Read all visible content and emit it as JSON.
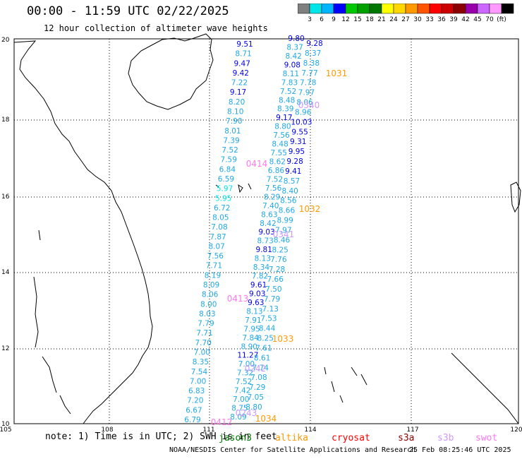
{
  "header": {
    "title": "00:00 - 11:59 UTC 02/22/2025",
    "subtitle": "12 hour collection of altimeter wave heights"
  },
  "legend": {
    "labels": [
      "3",
      "6",
      "9",
      "12",
      "15",
      "18",
      "21",
      "24",
      "27",
      "30",
      "33",
      "36",
      "39",
      "42",
      "45",
      "70",
      "(ft)"
    ],
    "colors": [
      "#7f7f7f",
      "#00e6e6",
      "#00b4ff",
      "#0000ff",
      "#00c800",
      "#00a000",
      "#007800",
      "#ffff00",
      "#ffd700",
      "#ff9900",
      "#ff5500",
      "#ff0000",
      "#cc0000",
      "#8b0000",
      "#9900aa",
      "#cc66ff",
      "#ff99ff",
      "#000000"
    ]
  },
  "axes": {
    "x_ticks": [
      "105",
      "108",
      "111",
      "114",
      "117",
      "120"
    ],
    "y_ticks": [
      "20",
      "18",
      "16",
      "14",
      "12",
      "10"
    ]
  },
  "pass_labels": [
    {
      "text": "1031",
      "color": "#ff9900"
    },
    {
      "text": "0340",
      "color": "#cc99ff"
    },
    {
      "text": "0414",
      "color": "#ff77ee"
    },
    {
      "text": "1032",
      "color": "#ff9900"
    },
    {
      "text": "0341",
      "color": "#cc99ff"
    },
    {
      "text": "0413",
      "color": "#ff77ee"
    },
    {
      "text": "1033",
      "color": "#ff9900"
    },
    {
      "text": "0242",
      "color": "#cc99ff"
    },
    {
      "text": "0243",
      "color": "#cc99ff"
    },
    {
      "text": "0412",
      "color": "#ff77ee"
    },
    {
      "text": "1034",
      "color": "#ff9900"
    }
  ],
  "tracks": [
    {
      "name": "track-a",
      "values": [
        "9.51",
        "8.71",
        "9.47",
        "9.42",
        "7.22",
        "9.17",
        "8.20",
        "8.10",
        "7.90",
        "8.01",
        "7.39",
        "7.52",
        "7.59",
        "6.84",
        "6.59",
        "5.97",
        "5.95",
        "6.72",
        "8.05",
        "7.08",
        "7.87",
        "8.07",
        "7.56",
        "7.71",
        "8.19",
        "8.09",
        "8.06",
        "8.00",
        "8.03",
        "7.79",
        "7.71",
        "7.70",
        "7.00",
        "8.35",
        "7.54",
        "7.00",
        "6.83",
        "7.20",
        "6.67",
        "6.79"
      ]
    },
    {
      "name": "track-b",
      "values": [
        "9.80",
        "8.37",
        "8.42",
        "9.08",
        "8.11",
        "7.83",
        "7.52",
        "8.48",
        "8.39",
        "9.17",
        "8.80",
        "7.56",
        "8.48",
        "7.55",
        "8.62",
        "6.86",
        "7.52",
        "7.56",
        "8.29",
        "7.40",
        "8.63",
        "8.42",
        "9.03",
        "8.73",
        "9.81",
        "8.13",
        "8.34",
        "7.82",
        "9.61",
        "9.03",
        "9.63",
        "8.13",
        "7.91",
        "7.95",
        "7.84",
        "8.90",
        "11.27",
        "7.00",
        "7.32",
        "7.52",
        "7.42",
        "7.00",
        "8.75",
        "8.09"
      ]
    },
    {
      "name": "track-c",
      "values": [
        "9.28",
        "8.37",
        "8.38",
        "7.77",
        "7.78",
        "7.97",
        "8.06",
        "8.96",
        "10.03",
        "9.55",
        "9.31",
        "9.95",
        "9.28",
        "9.41",
        "8.57",
        "8.40",
        "8.56",
        "8.66",
        "8.99",
        "7.97",
        "8.46",
        "8.25",
        "7.76",
        "7.28",
        "7.66",
        "7.50",
        "7.79",
        "7.13",
        "7.53",
        "8.44",
        "8.25",
        "7.61",
        "8.61",
        "7.74",
        "7.08",
        "7.29",
        "7.05",
        "8.80"
      ]
    }
  ],
  "footer": {
    "note": "note: 1) Time is in UTC; 2) SWH is in feet",
    "satellites": [
      {
        "name": "jason3",
        "color": "#007800"
      },
      {
        "name": "altika",
        "color": "#ff9900"
      },
      {
        "name": "cryosat",
        "color": "#ff0000"
      },
      {
        "name": "s3a",
        "color": "#8b0000"
      },
      {
        "name": "s3b",
        "color": "#cc99ff"
      },
      {
        "name": "swot",
        "color": "#ff77ee"
      }
    ],
    "credit": "NOAA/NESDIS Center for Satellite Applications and Research",
    "timestamp": "25 Feb 08:25:46 UTC 2025"
  }
}
